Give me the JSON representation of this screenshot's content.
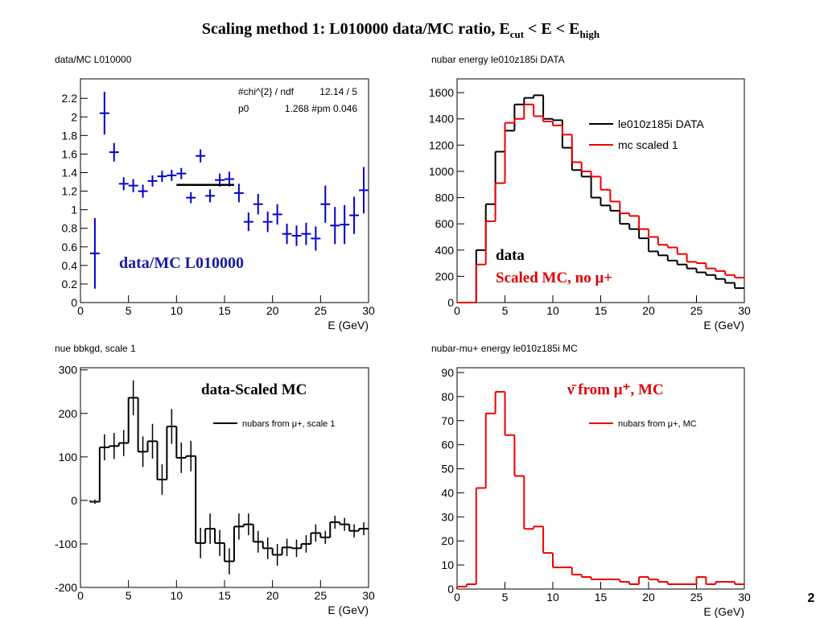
{
  "title": {
    "main": "Scaling method 1: L010000 data/MC ratio, E",
    "sub1": "cut",
    "mid": " < E < E",
    "sub2": "high"
  },
  "page_number": "2",
  "chart_data": [
    {
      "type": "scatter",
      "title": "data/MC L010000",
      "x_label": "E (GeV)",
      "x": [
        1.5,
        2.5,
        3.5,
        4.5,
        5.5,
        6.5,
        7.5,
        8.5,
        9.5,
        10.5,
        11.5,
        12.5,
        13.5,
        14.5,
        15.5,
        16.5,
        17.5,
        18.5,
        19.5,
        20.5,
        21.5,
        22.5,
        23.5,
        24.5,
        25.5,
        26.5,
        27.5,
        28.5,
        29.5
      ],
      "xerr": 0.5,
      "series": [
        {
          "color": "#0000cc",
          "values": [
            0.53,
            2.04,
            1.62,
            1.28,
            1.26,
            1.2,
            1.31,
            1.36,
            1.37,
            1.39,
            1.13,
            1.58,
            1.15,
            1.32,
            1.33,
            1.18,
            0.87,
            1.06,
            0.87,
            0.95,
            0.74,
            0.72,
            0.74,
            0.69,
            1.06,
            0.83,
            0.84,
            0.94,
            1.21
          ],
          "errors": [
            0.38,
            0.23,
            0.1,
            0.07,
            0.07,
            0.07,
            0.06,
            0.06,
            0.06,
            0.06,
            0.06,
            0.07,
            0.07,
            0.07,
            0.08,
            0.1,
            0.1,
            0.11,
            0.11,
            0.11,
            0.11,
            0.11,
            0.12,
            0.13,
            0.2,
            0.2,
            0.21,
            0.2,
            0.25
          ]
        }
      ],
      "fit": {
        "range": [
          10,
          16
        ],
        "value": 1.268,
        "color": "#000000"
      },
      "stats": [
        [
          "#chi^{2} / ndf",
          "12.14 / 5"
        ],
        [
          "p0",
          "1.268 #pm 0.046"
        ]
      ],
      "annotations": [
        {
          "text": "data/MC L010000",
          "color": "#1a1aaa"
        }
      ],
      "xlim": [
        0,
        30
      ],
      "xticks": [
        0,
        5,
        10,
        15,
        20,
        25,
        30
      ],
      "ylim": [
        0,
        2.41
      ],
      "yticks": [
        0,
        0.2,
        0.4,
        0.6,
        0.8,
        1,
        1.2,
        1.4,
        1.6,
        1.8,
        2,
        2.2
      ]
    },
    {
      "type": "histogram",
      "title": "nubar energy le010z185i DATA",
      "x_label": "E (GeV)",
      "bins": [
        0,
        1,
        2,
        3,
        4,
        5,
        6,
        7,
        8,
        9,
        10,
        11,
        12,
        13,
        14,
        15,
        16,
        17,
        18,
        19,
        20,
        21,
        22,
        23,
        24,
        25,
        26,
        27,
        28,
        29,
        30
      ],
      "series": [
        {
          "name": "le010z185i DATA",
          "color": "#000000",
          "values": [
            0,
            0,
            400,
            750,
            1150,
            1310,
            1510,
            1560,
            1580,
            1400,
            1390,
            1180,
            1010,
            960,
            800,
            740,
            700,
            600,
            560,
            490,
            390,
            360,
            320,
            290,
            260,
            230,
            210,
            180,
            150,
            110
          ]
        },
        {
          "name": "mc scaled 1",
          "color": "#ee0000",
          "values": [
            0,
            0,
            290,
            620,
            910,
            1370,
            1400,
            1510,
            1420,
            1380,
            1350,
            1280,
            1070,
            1000,
            960,
            860,
            770,
            680,
            660,
            560,
            500,
            440,
            420,
            370,
            310,
            300,
            260,
            240,
            210,
            190
          ]
        }
      ],
      "legend": "upper right",
      "annotations": [
        {
          "text": "data",
          "color": "#000000"
        },
        {
          "text": "Scaled MC, no μ+",
          "color": "#dd0000"
        }
      ],
      "xlim": [
        0,
        30
      ],
      "xticks": [
        0,
        5,
        10,
        15,
        20,
        25,
        30
      ],
      "ylim": [
        0,
        1705
      ],
      "yticks": [
        0,
        200,
        400,
        600,
        800,
        1000,
        1200,
        1400,
        1600
      ]
    },
    {
      "type": "histogram",
      "title": "nue bbkgd, scale 1",
      "x_label": "E (GeV)",
      "bins": [
        1,
        2,
        3,
        4,
        5,
        6,
        7,
        8,
        9,
        10,
        11,
        12,
        13,
        14,
        15,
        16,
        17,
        18,
        19,
        20,
        21,
        22,
        23,
        24,
        25,
        26,
        27,
        28,
        29,
        30
      ],
      "series": [
        {
          "name": "nubars from μ+, scale 1",
          "color": "#000000",
          "values": [
            -3,
            122,
            125,
            132,
            236,
            112,
            136,
            48,
            170,
            98,
            102,
            -98,
            -65,
            -98,
            -140,
            -60,
            -55,
            -95,
            -110,
            -125,
            -108,
            -110,
            -100,
            -75,
            -85,
            -50,
            -55,
            -70,
            -65
          ],
          "errors": [
            5,
            30,
            30,
            30,
            40,
            35,
            40,
            35,
            40,
            35,
            35,
            35,
            35,
            30,
            30,
            30,
            25,
            25,
            25,
            25,
            20,
            20,
            20,
            20,
            15,
            15,
            15,
            15,
            15
          ]
        }
      ],
      "legend": "upper right",
      "annotations": [
        {
          "text": "data-Scaled MC",
          "color": "#000000"
        }
      ],
      "xlim": [
        0,
        30
      ],
      "xticks": [
        0,
        5,
        10,
        15,
        20,
        25,
        30
      ],
      "ylim": [
        -200,
        305
      ],
      "yticks": [
        -200,
        -100,
        0,
        100,
        200,
        300
      ]
    },
    {
      "type": "histogram",
      "title": "nubar-mu+ energy le010z185i MC",
      "x_label": "E (GeV)",
      "bins": [
        0,
        1,
        2,
        3,
        4,
        5,
        6,
        7,
        8,
        9,
        10,
        11,
        12,
        13,
        14,
        15,
        16,
        17,
        18,
        19,
        20,
        21,
        22,
        23,
        24,
        25,
        26,
        27,
        28,
        29,
        30
      ],
      "series": [
        {
          "name": "nubars from μ+, MC",
          "color": "#ee0000",
          "values": [
            1,
            2,
            42,
            73,
            82,
            64,
            47,
            25,
            26,
            15,
            9,
            9,
            6,
            5,
            4,
            4,
            4,
            3,
            2,
            5,
            4,
            3,
            2,
            2,
            2,
            5,
            2,
            3,
            3,
            2
          ]
        }
      ],
      "legend": "upper right",
      "annotations": [
        {
          "text": "ν̄ from μ⁺, MC",
          "color": "#dd0000"
        }
      ],
      "xlim": [
        0,
        30
      ],
      "xticks": [
        0,
        5,
        10,
        15,
        20,
        25,
        30
      ],
      "ylim": [
        0,
        92
      ],
      "yticks": [
        0,
        10,
        20,
        30,
        40,
        50,
        60,
        70,
        80,
        90
      ]
    }
  ]
}
